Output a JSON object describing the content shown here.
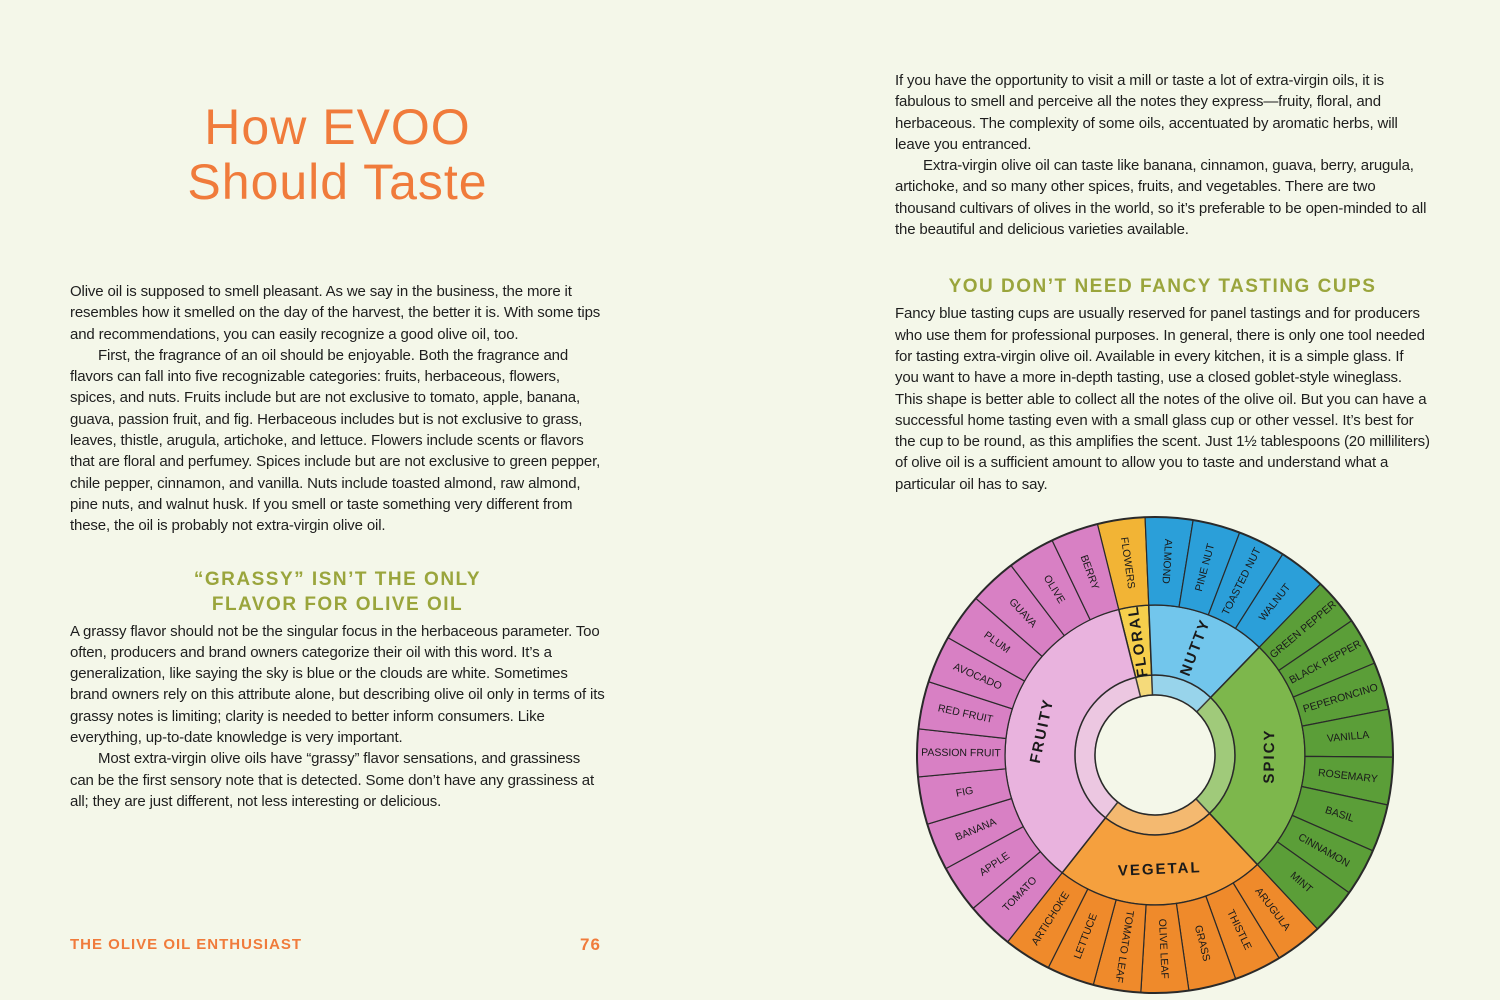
{
  "left_page": {
    "title": [
      "How EVOO",
      "Should Taste"
    ],
    "paragraphs": [
      "Olive oil is supposed to smell pleasant. As we say in the business, the more it resembles how it smelled on the day of the harvest, the better it is. With some tips and recommendations, you can easily recognize a good olive oil, too.",
      "First, the fragrance of an oil should be enjoyable. Both the fragrance and flavors can fall into five recognizable categories: fruits, herbaceous, flowers, spices, and nuts. Fruits include but are not exclusive to tomato, apple, banana, guava, passion fruit, and fig. Herbaceous includes but is not exclusive to grass, leaves, thistle, arugula, artichoke, and lettuce. Flowers include scents or flavors that are floral and perfumey. Spices include but are not exclusive to green pepper, chile pepper, cinnamon, and vanilla. Nuts include toasted almond, raw almond, pine nuts, and walnut husk. If you smell or taste something very different from these, the oil is probably not extra-virgin olive oil."
    ],
    "section_heading": [
      "“GRASSY” ISN’T THE ONLY",
      "FLAVOR FOR OLIVE OIL"
    ],
    "section_paragraphs": [
      "A grassy flavor should not be the singular focus in the herbaceous parameter. Too often, producers and brand owners categorize their oil with this word. It’s a generalization, like saying the sky is blue or the clouds are white. Sometimes brand owners rely on this attribute alone, but describing olive oil only in terms of its grassy notes is limiting; clarity is needed to better inform consumers. Like everything, up-to-date knowledge is very important.",
      "Most extra-virgin olive oils have “grassy” flavor sensations, and grassiness can be the first sensory note that is detected. Some don’t have any grassiness at all; they are just different, not less interesting or delicious."
    ],
    "footer": {
      "book_title": "THE OLIVE OIL ENTHUSIAST",
      "page_number": "76"
    }
  },
  "right_page": {
    "paragraphs": [
      "If you have the opportunity to visit a mill or taste a lot of extra-virgin oils, it is fabulous to smell and perceive all the notes they express—fruity, floral, and herbaceous. The complexity of some oils, accentuated by aromatic herbs, will leave you entranced.",
      "Extra-virgin olive oil can taste like banana, cinnamon, guava, berry, arugula, artichoke, and so many other spices, fruits, and vegetables. There are two thousand cultivars of olives in the world, so it’s preferable to be open-minded to all the beautiful and delicious varieties available."
    ],
    "section_heading": "YOU DON’T NEED FANCY TASTING CUPS",
    "section_paragraphs": [
      "Fancy blue tasting cups are usually reserved for panel tastings and for producers who use them for professional purposes. In general, there is only one tool needed for tasting extra-virgin olive oil. Available in every kitchen, it is a simple glass. If you want to have a more in-depth tasting, use a closed goblet-style wineglass. This shape is better able to collect all the notes of the olive oil. But you can have a successful home tasting even with a small glass cup or other vessel. It’s best for the cup to be round, as this amplifies the scent. Just 1½ tablespoons (20 milliliters) of olive oil is a sufficient amount to allow you to taste and understand what a particular oil has to say."
    ],
    "flavor_wheel": {
      "categories": [
        {
          "name": "FLORAL",
          "color": "#f6cf4c",
          "note_color": "#f2b435",
          "notes": [
            "FLOWERS"
          ]
        },
        {
          "name": "NUTTY",
          "color": "#72c6ec",
          "note_color": "#2b9fd9",
          "notes": [
            "ALMOND",
            "PINE NUT",
            "TOASTED NUT",
            "WALNUT"
          ]
        },
        {
          "name": "SPICY",
          "color": "#7db74c",
          "note_color": "#5b9e38",
          "notes": [
            "GREEN PEPPER",
            "BLACK PEPPER",
            "PEPERONCINO",
            "VANILLA",
            "ROSEMARY",
            "BASIL",
            "CINNAMON",
            "MINT"
          ]
        },
        {
          "name": "VEGETAL",
          "color": "#f5a03e",
          "note_color": "#ef8a2b",
          "notes": [
            "ARUGULA",
            "THISTLE",
            "GRASS",
            "OLIVE LEAF",
            "TOMATO LEAF",
            "LETTUCE",
            "ARTICHOKE"
          ]
        },
        {
          "name": "FRUITY",
          "color": "#e9b3de",
          "note_color": "#d880c4",
          "notes": [
            "TOMATO",
            "APPLE",
            "BANANA",
            "FIG",
            "PASSION FRUIT",
            "RED FRUIT",
            "AVOCADO",
            "PLUM",
            "GUAVA",
            "OLIVE",
            "BERRY"
          ]
        }
      ]
    }
  }
}
